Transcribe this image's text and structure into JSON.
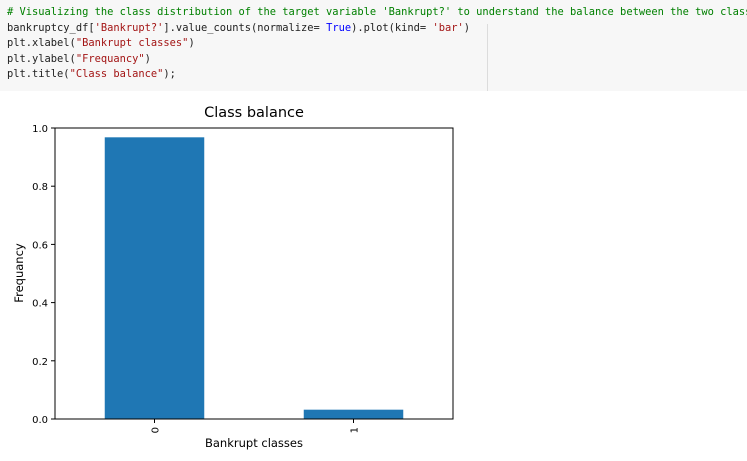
{
  "code_cell": {
    "lines": [
      [
        {
          "t": "# Visualizing the class distribution of the target variable 'Bankrupt?' to understand the balance between the two classes",
          "k": "comment"
        }
      ],
      [
        {
          "t": "bankruptcy_df[",
          "k": ""
        },
        {
          "t": "'Bankrupt?'",
          "k": "str"
        },
        {
          "t": "].value_counts(normalize= ",
          "k": ""
        },
        {
          "t": "True",
          "k": "kw"
        },
        {
          "t": ").plot(kind= ",
          "k": ""
        },
        {
          "t": "'bar'",
          "k": "str"
        },
        {
          "t": ")",
          "k": ""
        }
      ],
      [
        {
          "t": "plt.xlabel(",
          "k": ""
        },
        {
          "t": "\"Bankrupt classes\"",
          "k": "str"
        },
        {
          "t": ")",
          "k": ""
        }
      ],
      [
        {
          "t": "plt.ylabel(",
          "k": ""
        },
        {
          "t": "\"Frequancy\"",
          "k": "str"
        },
        {
          "t": ")",
          "k": ""
        }
      ],
      [
        {
          "t": "plt.title(",
          "k": ""
        },
        {
          "t": "\"Class balance\"",
          "k": "str"
        },
        {
          "t": ");",
          "k": ""
        }
      ]
    ]
  },
  "colors": {
    "bar": "#1f77b4",
    "comment": "#008000",
    "string": "#a31515",
    "keyword": "#0000ff"
  },
  "chart_data": {
    "type": "bar",
    "title": "Class balance",
    "xlabel": "Bankrupt classes",
    "ylabel": "Frequancy",
    "categories": [
      "0",
      "1"
    ],
    "values": [
      0.968,
      0.032
    ],
    "ylim": [
      0.0,
      1.0
    ],
    "yticks": [
      0.0,
      0.2,
      0.4,
      0.6,
      0.8,
      1.0
    ],
    "ytick_labels": [
      "0.0",
      "0.2",
      "0.4",
      "0.6",
      "0.8",
      "1.0"
    ],
    "grid": false,
    "legend": "none"
  }
}
